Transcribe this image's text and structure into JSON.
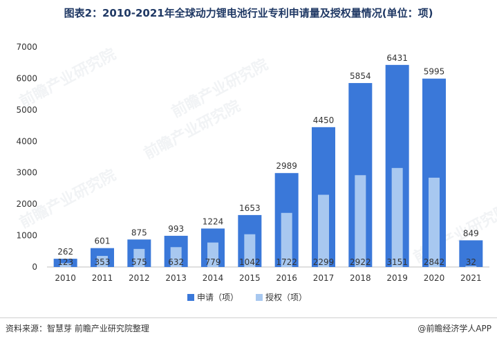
{
  "title": "图表2：2010-2021年全球动力锂电池行业专利申请量及授权量情况(单位：项)",
  "source": "资料来源：智慧芽 前瞻产业研究院整理",
  "credit": "@前瞻经济学人APP",
  "watermark": "前瞻产业研究院",
  "colors": {
    "apply": "#3a78d9",
    "grant": "#a8c8f0",
    "grid": "#d9d9d9",
    "text": "#333333"
  },
  "chart_data": {
    "type": "bar",
    "categories": [
      "2010",
      "2011",
      "2012",
      "2013",
      "2014",
      "2015",
      "2016",
      "2017",
      "2018",
      "2019",
      "2020",
      "2021"
    ],
    "series": [
      {
        "name": "申请（项）",
        "values": [
          262,
          601,
          875,
          993,
          1224,
          1653,
          2989,
          4450,
          5854,
          6431,
          5995,
          849
        ]
      },
      {
        "name": "授权（项）",
        "values": [
          123,
          353,
          575,
          632,
          779,
          1042,
          1722,
          2299,
          2922,
          3151,
          2842,
          32
        ]
      }
    ],
    "ylim": [
      0,
      7000
    ],
    "yticks": [
      0,
      1000,
      2000,
      3000,
      4000,
      5000,
      6000,
      7000
    ],
    "grid": false,
    "legend": "bottom"
  }
}
